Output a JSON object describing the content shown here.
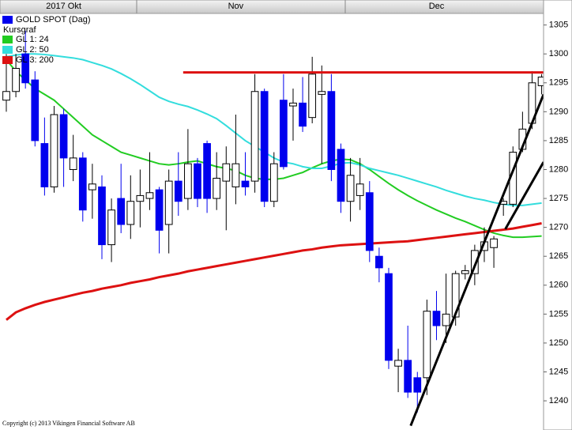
{
  "chart_data": {
    "type": "candlestick",
    "name": "GOLD SPOT (Dag)",
    "color": "#0000ee",
    "legend_subtitle": "Kursgraf",
    "copyright": "Copyright (c) 2013 Vikingen Financial Software AB",
    "categories": [
      null,
      null,
      null,
      null,
      null,
      null,
      "2017 Okt",
      null,
      null,
      null,
      null,
      null,
      null,
      null,
      null,
      null,
      null,
      null,
      null,
      null,
      null,
      null,
      null,
      null,
      "Nov",
      null,
      null,
      null,
      null,
      null,
      null,
      null,
      null,
      null,
      null,
      null,
      null,
      null,
      null,
      null,
      null,
      null,
      null,
      null,
      null,
      "Dec",
      null,
      null,
      null,
      null,
      null,
      null,
      null,
      null,
      null,
      null,
      null
    ],
    "open": [
      1292,
      1293.5,
      1300,
      1295.5,
      1284.5,
      1277,
      1289.5,
      1280,
      1282,
      1276.5,
      1277,
      1267,
      1275,
      1270.5,
      1274.5,
      1275,
      1276.5,
      1270.5,
      1278,
      1275,
      1281,
      1284.5,
      1275,
      1278,
      1277,
      1278,
      1278,
      1293.5,
      1274.5,
      1292,
      1291,
      1291.5,
      1289,
      1293,
      1293.5,
      1283.5,
      1274.5,
      1275.5,
      1276,
      1265,
      1262,
      1246,
      1247,
      1244,
      1244,
      1255.5,
      1253,
      1254.5,
      1262,
      1262,
      1266,
      1266.5,
      1274,
      1274,
      1283.5,
      1288,
      1294.5
    ],
    "high": [
      1300,
      1300,
      1304,
      1297,
      1289,
      1291,
      1290.5,
      1286,
      1283,
      1281,
      1279,
      1275,
      1281,
      1279,
      1280,
      1283,
      1277,
      1280,
      1283,
      1287,
      1282,
      1285,
      1283,
      1284,
      1289.5,
      1283,
      1296.5,
      1294,
      1283,
      1296.5,
      1294,
      1296,
      1299.5,
      1298,
      1296.5,
      1284.5,
      1282,
      1282,
      1278,
      1266.5,
      1263,
      1249,
      1253,
      1245,
      1257.5,
      1259,
      1262,
      1262.5,
      1263.5,
      1267,
      1270,
      1268.5,
      1275,
      1284,
      1290,
      1297,
      1296.5
    ],
    "low": [
      1290,
      1292.5,
      1294,
      1284,
      1275.5,
      1276,
      1277,
      1278,
      1271,
      1271.5,
      1264.5,
      1264,
      1269,
      1268,
      1270,
      1273,
      1265.5,
      1265.5,
      1272,
      1273,
      1273.5,
      1272.5,
      1273,
      1269.5,
      1274,
      1275.5,
      1276,
      1273.5,
      1273.5,
      1280,
      1285,
      1286.5,
      1288,
      1281,
      1278,
      1272.5,
      1271,
      1273,
      1264,
      1260.5,
      1245.5,
      1241.5,
      1240.5,
      1238,
      1241,
      1250.5,
      1250,
      1253,
      1261,
      1260,
      1264,
      1263,
      1272,
      1273.5,
      1283,
      1287,
      1293
    ],
    "close": [
      1293.5,
      1297.5,
      1295,
      1285,
      1277,
      1289.5,
      1282,
      1282,
      1273,
      1277.5,
      1267,
      1273,
      1270.5,
      1274.5,
      1275.5,
      1276,
      1269.5,
      1278,
      1274.5,
      1281,
      1275,
      1275,
      1278.5,
      1281,
      1281,
      1277,
      1293.5,
      1274.5,
      1281,
      1280.5,
      1291.5,
      1287.5,
      1296.5,
      1293.5,
      1280,
      1274.5,
      1279,
      1277.5,
      1266,
      1263,
      1247,
      1247,
      1241.5,
      1241.5,
      1255.5,
      1253,
      1255,
      1262,
      1262.5,
      1266,
      1267.5,
      1268,
      1274.5,
      1283,
      1287,
      1295,
      1296
    ],
    "series": [
      {
        "name": "GL 1: 24",
        "color": "#22cc22",
        "values": [
          1299,
          1297,
          1295.5,
          1294,
          1293,
          1292,
          1290.5,
          1289,
          1287.5,
          1286,
          1285,
          1284,
          1283,
          1282.5,
          1282,
          1281.5,
          1281,
          1280.8,
          1281,
          1281.3,
          1281.5,
          1281,
          1280.5,
          1280.2,
          1279.8,
          1279,
          1278.5,
          1278.3,
          1278.3,
          1278.5,
          1279,
          1279.5,
          1280.3,
          1281,
          1281.5,
          1281.8,
          1281.7,
          1281,
          1280,
          1278.8,
          1277.6,
          1276.5,
          1275.5,
          1274.6,
          1273.8,
          1273,
          1272.3,
          1271.6,
          1271,
          1270.3,
          1269.6,
          1269,
          1268.6,
          1268.3,
          1268.3,
          1268.4,
          1268.5
        ]
      },
      {
        "name": "GL 2: 50",
        "color": "#33dddd",
        "values": [
          1299.5,
          1299.8,
          1300,
          1300,
          1299.9,
          1299.7,
          1299.5,
          1299.3,
          1299,
          1298.5,
          1298,
          1297.4,
          1296.6,
          1295.7,
          1294.7,
          1293.6,
          1292.5,
          1291.8,
          1291.3,
          1290.9,
          1290.3,
          1289.6,
          1288.8,
          1287.6,
          1286.3,
          1285,
          1284,
          1283,
          1282,
          1281.3,
          1281,
          1280.5,
          1280.2,
          1280.2,
          1280.6,
          1281.1,
          1281.2,
          1280.8,
          1280.2,
          1279.8,
          1279.4,
          1279,
          1278.5,
          1278,
          1277.5,
          1277,
          1276.4,
          1275.9,
          1275.4,
          1275,
          1274.7,
          1274.3,
          1274,
          1273.8,
          1273.8,
          1274,
          1274.2
        ]
      },
      {
        "name": "GL 3: 200",
        "color": "#dd1111",
        "values": [
          1254,
          1255.3,
          1256,
          1256.6,
          1257.1,
          1257.5,
          1257.9,
          1258.3,
          1258.7,
          1259,
          1259.4,
          1259.7,
          1260,
          1260.4,
          1260.7,
          1261,
          1261.4,
          1261.7,
          1262,
          1262.4,
          1262.7,
          1263,
          1263.3,
          1263.6,
          1263.9,
          1264.2,
          1264.5,
          1264.8,
          1265.1,
          1265.4,
          1265.7,
          1266,
          1266.2,
          1266.5,
          1266.7,
          1266.9,
          1267,
          1267.1,
          1267.2,
          1267.3,
          1267.4,
          1267.5,
          1267.6,
          1267.8,
          1268,
          1268.2,
          1268.4,
          1268.6,
          1268.8,
          1269,
          1269.2,
          1269.4,
          1269.6,
          1269.8,
          1270.1,
          1270.4,
          1270.7
        ]
      }
    ],
    "hlines": [
      {
        "value": 1296.8,
        "x": [
          18.5,
          56.2
        ],
        "color": "#dd1111"
      }
    ],
    "trendlines": [
      {
        "x": [
          42.3,
          56.2
        ],
        "y": [
          1235.7,
          1293
        ],
        "color": "#000000"
      },
      {
        "x": [
          52.2,
          56.2
        ],
        "y": [
          1269.7,
          1281.3
        ],
        "color": "#000000"
      }
    ],
    "xlim": [
      -0.66,
      56.2
    ],
    "ylim": [
      1235.5,
      1307
    ],
    "yticks": [
      1240,
      1245,
      1250,
      1255,
      1260,
      1265,
      1270,
      1275,
      1280,
      1285,
      1290,
      1295,
      1300,
      1305
    ]
  }
}
